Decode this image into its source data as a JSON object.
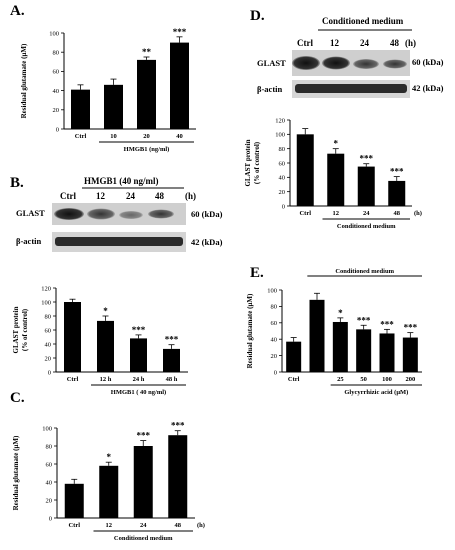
{
  "panels": {
    "A": {
      "letter": "A."
    },
    "B": {
      "letter": "B."
    },
    "C": {
      "letter": "C."
    },
    "D": {
      "letter": "D."
    },
    "E": {
      "letter": "E."
    }
  },
  "blots": {
    "B": {
      "header": "HMGB1 (40 ng/ml)",
      "lanes": [
        "Ctrl",
        "12",
        "24",
        "48"
      ],
      "unit": "(h)",
      "rows": [
        {
          "label": "GLAST",
          "size": "60 (kDa)"
        },
        {
          "label": "β-actin",
          "size": "42 (kDa)"
        }
      ]
    },
    "D": {
      "header": "Conditioned medium",
      "lanes": [
        "Ctrl",
        "12",
        "24",
        "48"
      ],
      "unit": "(h)",
      "rows": [
        {
          "label": "GLAST",
          "size": "60 (kDa)"
        },
        {
          "label": "β-actin",
          "size": "42 (kDa)"
        }
      ]
    }
  },
  "chart_data": [
    {
      "id": "A",
      "type": "bar",
      "ylabel": "Residual glutamate (μM)",
      "xlabel": "HMGB1 (ng/ml)",
      "categories": [
        "Ctrl",
        "10",
        "20",
        "40"
      ],
      "values": [
        41,
        46,
        72,
        90
      ],
      "errors": [
        5,
        6,
        3,
        6
      ],
      "significance": [
        "",
        "",
        "**",
        "***"
      ],
      "ylim": [
        0,
        100
      ],
      "yticks": [
        "0",
        "20",
        "40",
        "60",
        "80",
        "100"
      ],
      "xunit": ""
    },
    {
      "id": "B",
      "type": "bar",
      "ylabel": "GLAST protein",
      "ylabel2": "(% of control)",
      "xlabel": "HMGB1 ( 40 ng/ml)",
      "categories": [
        "Ctrl",
        "12 h",
        "24 h",
        "48 h"
      ],
      "values": [
        100,
        73,
        48,
        33
      ],
      "errors": [
        4,
        7,
        5,
        6
      ],
      "significance": [
        "",
        "*",
        "***",
        "***"
      ],
      "ylim": [
        0,
        120
      ],
      "yticks": [
        "0",
        "20",
        "40",
        "60",
        "80",
        "100",
        "120"
      ],
      "xunit": ""
    },
    {
      "id": "C",
      "type": "bar",
      "ylabel": "Residual glutamate (μM)",
      "xlabel": "Conditioned medium",
      "categories": [
        "Ctrl",
        "12",
        "24",
        "48"
      ],
      "values": [
        38,
        58,
        80,
        92
      ],
      "errors": [
        5,
        4,
        6,
        5
      ],
      "significance": [
        "",
        "*",
        "***",
        "***"
      ],
      "ylim": [
        0,
        100
      ],
      "yticks": [
        "0",
        "20",
        "40",
        "60",
        "80",
        "100"
      ],
      "xunit": "(h)"
    },
    {
      "id": "D",
      "type": "bar",
      "ylabel": "GLAST protein",
      "ylabel2": "(% of control)",
      "xlabel": "Conditioned medium",
      "categories": [
        "Ctrl",
        "12",
        "24",
        "48"
      ],
      "values": [
        100,
        73,
        55,
        35
      ],
      "errors": [
        8,
        7,
        4,
        6
      ],
      "significance": [
        "",
        "*",
        "***",
        "***"
      ],
      "ylim": [
        0,
        120
      ],
      "yticks": [
        "0",
        "20",
        "40",
        "60",
        "80",
        "100",
        "120"
      ],
      "xunit": "(h)"
    },
    {
      "id": "E",
      "type": "bar",
      "ylabel": "Residual glutamate (μM)",
      "topheader": "Conditioned medium",
      "xlabel": "Glycyrrhizic acid (μM)",
      "categories": [
        "Ctrl",
        "",
        "25",
        "50",
        "100",
        "200"
      ],
      "values": [
        37,
        88,
        61,
        52,
        47,
        42
      ],
      "errors": [
        5,
        8,
        5,
        5,
        5,
        6
      ],
      "significance": [
        "",
        "",
        "*",
        "***",
        "***",
        "***"
      ],
      "ylim": [
        0,
        100
      ],
      "yticks": [
        "0",
        "20",
        "40",
        "60",
        "80",
        "100"
      ],
      "xunit": ""
    }
  ]
}
